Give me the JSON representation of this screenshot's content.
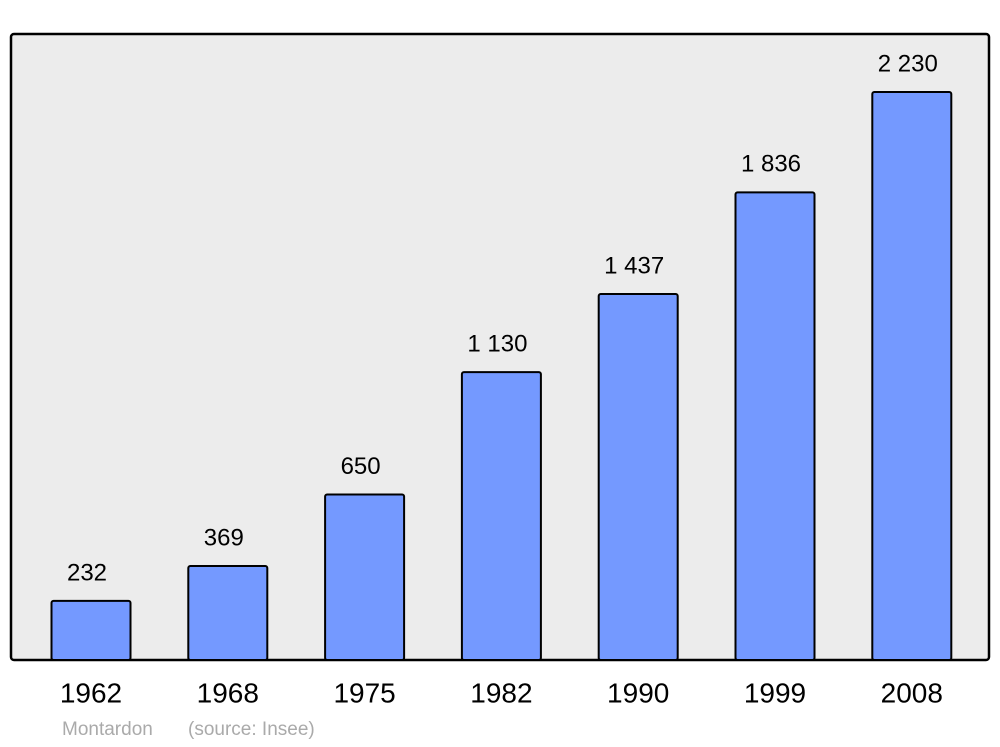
{
  "chart_data": {
    "type": "bar",
    "categories": [
      "1962",
      "1968",
      "1975",
      "1982",
      "1990",
      "1999",
      "2008"
    ],
    "values": [
      232,
      369,
      650,
      1130,
      1437,
      1836,
      2230
    ],
    "value_labels": [
      "232",
      "369",
      "650",
      "1 130",
      "1 437",
      "1 836",
      "2 230"
    ],
    "color": "#7499ff",
    "place": "Montardon",
    "source": "(source: Insee)"
  }
}
